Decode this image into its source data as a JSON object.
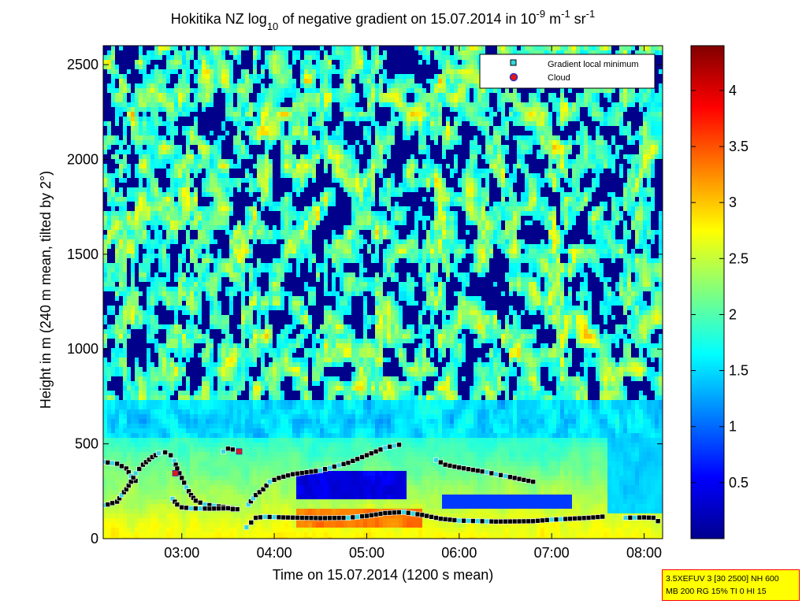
{
  "chart_data": {
    "type": "heatmap",
    "title": {
      "prefix": "Hokitika NZ log",
      "sub": "10",
      "middle": " of negative gradient on 15.07.2014 in 10",
      "sup1": "-9",
      "middle2": " m",
      "sup2": "-1",
      "middle3": " sr",
      "sup3": "-1"
    },
    "xlabel": "Time on 15.07.2014 (1200 s mean)",
    "ylabel": "Height in m (240 m mean, tilted by 2°)",
    "xlim_hours": [
      2.15,
      8.2
    ],
    "ylim": [
      0,
      2600
    ],
    "x_ticks": [
      {
        "hour": 3,
        "label": "03:00"
      },
      {
        "hour": 4,
        "label": "04:00"
      },
      {
        "hour": 5,
        "label": "05:00"
      },
      {
        "hour": 6,
        "label": "06:00"
      },
      {
        "hour": 7,
        "label": "07:00"
      },
      {
        "hour": 8,
        "label": "08:00"
      }
    ],
    "y_ticks": [
      {
        "value": 0,
        "label": "0"
      },
      {
        "value": 500,
        "label": "500"
      },
      {
        "value": 1000,
        "label": "1000"
      },
      {
        "value": 1500,
        "label": "1500"
      },
      {
        "value": 2000,
        "label": "2000"
      },
      {
        "value": 2500,
        "label": "2500"
      }
    ],
    "colorbar": {
      "range": [
        0,
        4.4
      ],
      "colormap": "jet",
      "ticks": [
        {
          "value": 0.5,
          "label": "0.5"
        },
        {
          "value": 1,
          "label": "1"
        },
        {
          "value": 1.5,
          "label": "1.5"
        },
        {
          "value": 2,
          "label": "2"
        },
        {
          "value": 2.5,
          "label": "2.5"
        },
        {
          "value": 3,
          "label": "3"
        },
        {
          "value": 3.5,
          "label": "3.5"
        },
        {
          "value": 4,
          "label": "4"
        }
      ]
    },
    "legend": {
      "placement": "top-right",
      "entries": [
        {
          "label": "Gradient local minimum",
          "marker": "square",
          "color": "#33d6e0"
        },
        {
          "label": "Cloud",
          "marker": "circle",
          "color": "#e01818",
          "edge": "#3030c0"
        }
      ]
    },
    "gradient_minimum_tracks": [
      {
        "name": "track-a",
        "points": [
          [
            2.15,
            405
          ],
          [
            2.3,
            395
          ],
          [
            2.4,
            370
          ],
          [
            2.45,
            330
          ],
          [
            2.5,
            305
          ],
          [
            2.55,
            300
          ]
        ]
      },
      {
        "name": "track-b",
        "points": [
          [
            2.05,
            170
          ],
          [
            2.2,
            180
          ],
          [
            2.3,
            195
          ],
          [
            2.35,
            230
          ],
          [
            2.4,
            260
          ],
          [
            2.45,
            300
          ],
          [
            2.5,
            345
          ],
          [
            2.58,
            390
          ],
          [
            2.68,
            430
          ],
          [
            2.75,
            450
          ],
          [
            2.82,
            455
          ],
          [
            2.88,
            440
          ],
          [
            2.92,
            410
          ],
          [
            2.95,
            370
          ],
          [
            3.0,
            320
          ],
          [
            3.05,
            270
          ],
          [
            3.1,
            230
          ],
          [
            3.15,
            200
          ],
          [
            3.25,
            180
          ],
          [
            3.4,
            170
          ],
          [
            3.55,
            160
          ],
          [
            3.65,
            150
          ]
        ]
      },
      {
        "name": "track-c",
        "points": [
          [
            2.9,
            210
          ],
          [
            2.95,
            180
          ],
          [
            3.0,
            165
          ],
          [
            3.1,
            160
          ],
          [
            3.3,
            158
          ],
          [
            3.5,
            160
          ],
          [
            3.6,
            150
          ]
        ]
      },
      {
        "name": "track-d",
        "points": [
          [
            3.45,
            460
          ],
          [
            3.5,
            475
          ],
          [
            3.55,
            470
          ],
          [
            3.6,
            460
          ]
        ]
      },
      {
        "name": "track-e",
        "points": [
          [
            3.72,
            180
          ],
          [
            3.8,
            230
          ],
          [
            3.88,
            260
          ],
          [
            3.95,
            300
          ],
          [
            4.05,
            320
          ],
          [
            4.2,
            340
          ],
          [
            4.5,
            360
          ],
          [
            4.8,
            400
          ],
          [
            5.0,
            440
          ],
          [
            5.2,
            480
          ],
          [
            5.4,
            500
          ]
        ]
      },
      {
        "name": "track-f",
        "points": [
          [
            3.7,
            60
          ],
          [
            3.75,
            85
          ],
          [
            3.8,
            110
          ],
          [
            3.9,
            115
          ],
          [
            4.1,
            112
          ],
          [
            4.5,
            108
          ],
          [
            4.8,
            110
          ],
          [
            5.0,
            120
          ],
          [
            5.2,
            135
          ],
          [
            5.4,
            140
          ],
          [
            5.6,
            125
          ],
          [
            5.8,
            105
          ],
          [
            6.0,
            95
          ],
          [
            6.4,
            90
          ],
          [
            6.8,
            92
          ],
          [
            7.0,
            100
          ],
          [
            7.2,
            105
          ],
          [
            7.4,
            110
          ],
          [
            7.6,
            118
          ]
        ]
      },
      {
        "name": "track-g",
        "points": [
          [
            5.75,
            415
          ],
          [
            5.85,
            390
          ],
          [
            6.0,
            375
          ],
          [
            6.3,
            350
          ],
          [
            6.6,
            320
          ],
          [
            6.85,
            295
          ]
        ]
      },
      {
        "name": "track-h",
        "points": [
          [
            7.8,
            110
          ],
          [
            8.0,
            112
          ],
          [
            8.1,
            110
          ],
          [
            8.2,
            75
          ]
        ]
      }
    ],
    "cloud_points": [
      [
        2.93,
        345
      ],
      [
        3.62,
        460
      ]
    ]
  },
  "info_box": {
    "line1": "3.5XEFUV 3 [30 2500] NH 600",
    "line2": "MB 200 RG 15% TI 0 HI 15"
  }
}
